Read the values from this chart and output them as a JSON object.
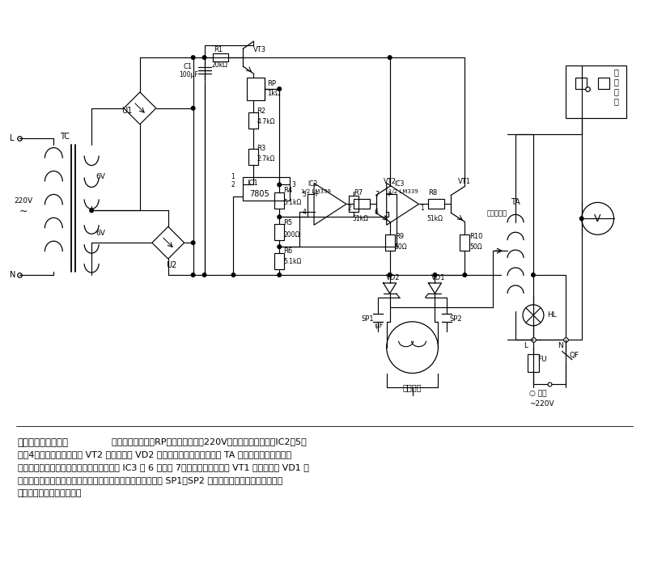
{
  "bg_color": "#ffffff",
  "title_bold": "自动交流稳压器电路",
  "desc_line0": "  电路通电后，调节RP使稳压器输出在220V，电网电压上升时，IC2脚5高",
  "desc_lines": [
    "于脚4，其输出为高电平使 VT2 导通，触发 VD2 导通，可送电机正转，带动 TA 调节臂增加一次绕组匝",
    "数，使输出电压降低。若电网电压下降，使 IC3 脚 6 低于脚 7，其输出为高电平使 VT1 导通，触发 VD1 导",
    "通，电机反转，使输出电压上升，保持稳定的输出电压。图中 SP1、SP2 分别为调节臂的高低限位开关，",
    "防止变压器输出电压过高。"
  ]
}
